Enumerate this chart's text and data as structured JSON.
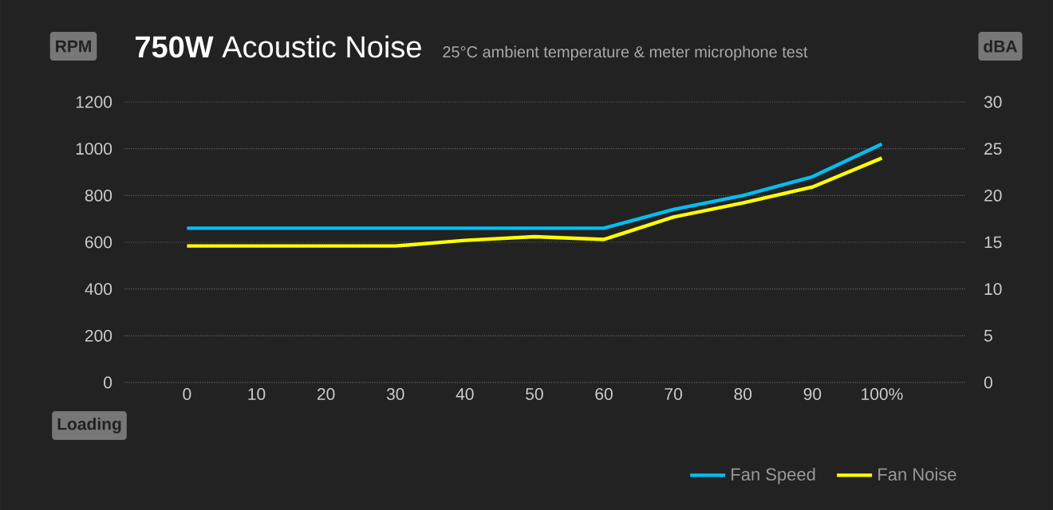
{
  "chart_data": {
    "type": "line",
    "title": "**750W** Acoustic Noise",
    "subtitle": "25°C ambient temperature & meter microphone test",
    "xlabel": "Loading",
    "ylabel": "RPM",
    "y2label": "dBA",
    "categories": [
      "0",
      "10",
      "20",
      "30",
      "40",
      "50",
      "60",
      "70",
      "80",
      "90",
      "100%"
    ],
    "series": [
      {
        "name": "Fan Speed",
        "color": "#00bff3",
        "values": [
          660,
          660,
          660,
          660,
          660,
          660,
          660,
          740,
          800,
          880,
          1020
        ]
      },
      {
        "name": "Fan Noise",
        "color": "#ffff00",
        "axis": "y2",
        "values": [
          14.6,
          14.6,
          14.6,
          14.6,
          15.2,
          15.6,
          15.3,
          17.7,
          19.2,
          20.9,
          24.0
        ]
      }
    ],
    "ylim": [
      0,
      1200
    ],
    "yticks": [
      0,
      200,
      400,
      600,
      800,
      1000,
      1200
    ],
    "y2lim": [
      0,
      30
    ],
    "y2ticks": [
      0,
      5,
      10,
      15,
      20,
      25,
      30
    ],
    "grid": "y",
    "legend": "bottom right",
    "marker": "none",
    "line_style": "solid"
  }
}
